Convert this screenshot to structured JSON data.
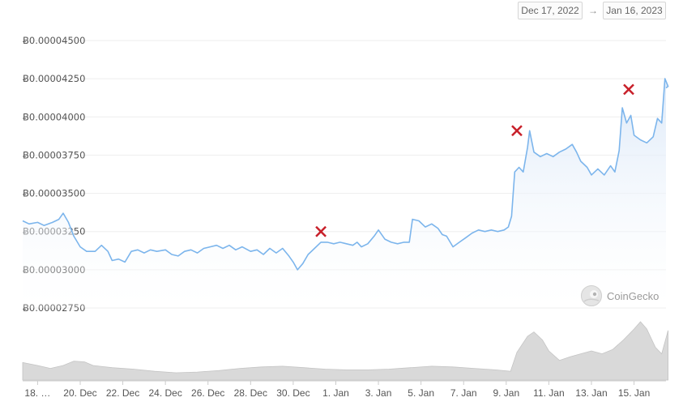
{
  "date_range": {
    "from": "Dec 17, 2022",
    "arrow": "→",
    "to": "Jan 16, 2023"
  },
  "watermark": {
    "text": "CoinGecko"
  },
  "colors": {
    "line": "#7cb5ec",
    "area_top": "#dbe8f8",
    "volume": "#d9d9d9",
    "volume_stroke": "#c4c4c4",
    "marker": "#c8202a",
    "grid": "#eeeeee"
  },
  "chart_data": {
    "type": "line",
    "y_tick_labels": [
      "Ƀ0.00004500",
      "Ƀ0.00004250",
      "Ƀ0.00004000",
      "Ƀ0.00003750",
      "Ƀ0.00003500",
      "Ƀ0.00003250",
      "Ƀ0.00003000",
      "Ƀ0.00002750"
    ],
    "y_ticks": [
      4.5e-05,
      4.25e-05,
      4e-05,
      3.75e-05,
      3.5e-05,
      3.25e-05,
      3e-05,
      2.75e-05
    ],
    "ylim": [
      2.75e-05,
      4.5e-05
    ],
    "x_tick_labels": [
      "18. …",
      "20. Dec",
      "22. Dec",
      "24. Dec",
      "26. Dec",
      "28. Dec",
      "30. Dec",
      "1. Jan",
      "3. Jan",
      "5. Jan",
      "7. Jan",
      "9. Jan",
      "11. Jan",
      "13. Jan",
      "15. Jan"
    ],
    "x_tick_days": [
      1,
      3,
      5,
      7,
      9,
      11,
      13,
      15,
      17,
      19,
      21,
      23,
      25,
      27,
      29
    ],
    "xlim_days": [
      0.3,
      30.5
    ],
    "grid": true,
    "series": [
      {
        "values": [
          [
            0.3,
            3.32e-05
          ],
          [
            0.6,
            3.3e-05
          ],
          [
            1.0,
            3.31e-05
          ],
          [
            1.3,
            3.29e-05
          ],
          [
            1.7,
            3.31e-05
          ],
          [
            2.0,
            3.33e-05
          ],
          [
            2.2,
            3.37e-05
          ],
          [
            2.45,
            3.31e-05
          ],
          [
            2.7,
            3.22e-05
          ],
          [
            3.0,
            3.15e-05
          ],
          [
            3.3,
            3.12e-05
          ],
          [
            3.7,
            3.12e-05
          ],
          [
            4.0,
            3.16e-05
          ],
          [
            4.3,
            3.12e-05
          ],
          [
            4.5,
            3.06e-05
          ],
          [
            4.8,
            3.07e-05
          ],
          [
            5.1,
            3.05e-05
          ],
          [
            5.4,
            3.12e-05
          ],
          [
            5.7,
            3.13e-05
          ],
          [
            6.0,
            3.11e-05
          ],
          [
            6.3,
            3.13e-05
          ],
          [
            6.6,
            3.12e-05
          ],
          [
            7.0,
            3.13e-05
          ],
          [
            7.3,
            3.1e-05
          ],
          [
            7.6,
            3.09e-05
          ],
          [
            7.9,
            3.12e-05
          ],
          [
            8.2,
            3.13e-05
          ],
          [
            8.5,
            3.11e-05
          ],
          [
            8.8,
            3.14e-05
          ],
          [
            9.1,
            3.15e-05
          ],
          [
            9.4,
            3.16e-05
          ],
          [
            9.7,
            3.14e-05
          ],
          [
            10.0,
            3.16e-05
          ],
          [
            10.3,
            3.13e-05
          ],
          [
            10.6,
            3.15e-05
          ],
          [
            11.0,
            3.12e-05
          ],
          [
            11.3,
            3.13e-05
          ],
          [
            11.6,
            3.1e-05
          ],
          [
            11.9,
            3.14e-05
          ],
          [
            12.2,
            3.11e-05
          ],
          [
            12.5,
            3.14e-05
          ],
          [
            12.8,
            3.09e-05
          ],
          [
            13.0,
            3.05e-05
          ],
          [
            13.2,
            3e-05
          ],
          [
            13.45,
            3.04e-05
          ],
          [
            13.7,
            3.1e-05
          ],
          [
            14.0,
            3.14e-05
          ],
          [
            14.3,
            3.18e-05
          ],
          [
            14.6,
            3.18e-05
          ],
          [
            14.9,
            3.17e-05
          ],
          [
            15.2,
            3.18e-05
          ],
          [
            15.5,
            3.17e-05
          ],
          [
            15.8,
            3.16e-05
          ],
          [
            16.0,
            3.18e-05
          ],
          [
            16.2,
            3.15e-05
          ],
          [
            16.5,
            3.17e-05
          ],
          [
            16.8,
            3.22e-05
          ],
          [
            17.0,
            3.26e-05
          ],
          [
            17.3,
            3.2e-05
          ],
          [
            17.6,
            3.18e-05
          ],
          [
            17.9,
            3.17e-05
          ],
          [
            18.2,
            3.18e-05
          ],
          [
            18.45,
            3.18e-05
          ],
          [
            18.6,
            3.33e-05
          ],
          [
            18.9,
            3.32e-05
          ],
          [
            19.2,
            3.28e-05
          ],
          [
            19.5,
            3.3e-05
          ],
          [
            19.8,
            3.27e-05
          ],
          [
            20.0,
            3.23e-05
          ],
          [
            20.2,
            3.22e-05
          ],
          [
            20.5,
            3.15e-05
          ],
          [
            20.8,
            3.18e-05
          ],
          [
            21.1,
            3.21e-05
          ],
          [
            21.4,
            3.24e-05
          ],
          [
            21.7,
            3.26e-05
          ],
          [
            22.0,
            3.25e-05
          ],
          [
            22.3,
            3.26e-05
          ],
          [
            22.6,
            3.25e-05
          ],
          [
            22.9,
            3.26e-05
          ],
          [
            23.1,
            3.28e-05
          ],
          [
            23.25,
            3.35e-05
          ],
          [
            23.4,
            3.64e-05
          ],
          [
            23.6,
            3.67e-05
          ],
          [
            23.8,
            3.64e-05
          ],
          [
            24.0,
            3.8e-05
          ],
          [
            24.1,
            3.91e-05
          ],
          [
            24.3,
            3.77e-05
          ],
          [
            24.6,
            3.74e-05
          ],
          [
            24.9,
            3.76e-05
          ],
          [
            25.2,
            3.74e-05
          ],
          [
            25.5,
            3.77e-05
          ],
          [
            25.8,
            3.79e-05
          ],
          [
            26.1,
            3.82e-05
          ],
          [
            26.3,
            3.77e-05
          ],
          [
            26.5,
            3.71e-05
          ],
          [
            26.8,
            3.67e-05
          ],
          [
            27.0,
            3.62e-05
          ],
          [
            27.3,
            3.66e-05
          ],
          [
            27.6,
            3.62e-05
          ],
          [
            27.9,
            3.68e-05
          ],
          [
            28.1,
            3.64e-05
          ],
          [
            28.3,
            3.78e-05
          ],
          [
            28.45,
            4.06e-05
          ],
          [
            28.65,
            3.96e-05
          ],
          [
            28.85,
            4.01e-05
          ],
          [
            29.0,
            3.88e-05
          ],
          [
            29.3,
            3.85e-05
          ],
          [
            29.6,
            3.83e-05
          ],
          [
            29.9,
            3.87e-05
          ],
          [
            30.1,
            3.99e-05
          ],
          [
            30.3,
            3.96e-05
          ],
          [
            30.45,
            4.25e-05
          ],
          [
            30.6,
            4.2e-05
          ],
          [
            30.5,
            4.19e-05
          ]
        ]
      }
    ],
    "volume_series": [
      [
        0.3,
        0.24
      ],
      [
        1.0,
        0.2
      ],
      [
        1.6,
        0.16
      ],
      [
        2.2,
        0.2
      ],
      [
        2.7,
        0.26
      ],
      [
        3.2,
        0.25
      ],
      [
        3.6,
        0.2
      ],
      [
        4.5,
        0.17
      ],
      [
        5.5,
        0.15
      ],
      [
        6.5,
        0.12
      ],
      [
        7.5,
        0.1
      ],
      [
        8.5,
        0.11
      ],
      [
        9.5,
        0.13
      ],
      [
        10.5,
        0.16
      ],
      [
        11.5,
        0.18
      ],
      [
        12.5,
        0.19
      ],
      [
        13.5,
        0.17
      ],
      [
        14.5,
        0.15
      ],
      [
        15.5,
        0.14
      ],
      [
        16.5,
        0.14
      ],
      [
        17.5,
        0.15
      ],
      [
        18.5,
        0.17
      ],
      [
        19.5,
        0.19
      ],
      [
        20.5,
        0.18
      ],
      [
        21.5,
        0.16
      ],
      [
        22.5,
        0.14
      ],
      [
        23.2,
        0.12
      ],
      [
        23.5,
        0.38
      ],
      [
        24.0,
        0.6
      ],
      [
        24.3,
        0.66
      ],
      [
        24.7,
        0.55
      ],
      [
        25.0,
        0.4
      ],
      [
        25.5,
        0.27
      ],
      [
        26.0,
        0.32
      ],
      [
        26.5,
        0.36
      ],
      [
        27.0,
        0.4
      ],
      [
        27.5,
        0.36
      ],
      [
        28.0,
        0.42
      ],
      [
        28.5,
        0.55
      ],
      [
        29.0,
        0.7
      ],
      [
        29.3,
        0.8
      ],
      [
        29.6,
        0.7
      ],
      [
        30.0,
        0.45
      ],
      [
        30.3,
        0.36
      ],
      [
        30.6,
        0.68
      ]
    ],
    "annotations": [
      {
        "type": "x-marker",
        "x": 14.3,
        "y": 3.25e-05
      },
      {
        "type": "x-marker",
        "x": 23.5,
        "y": 3.91e-05
      },
      {
        "type": "x-marker",
        "x": 28.75,
        "y": 4.18e-05
      }
    ]
  }
}
